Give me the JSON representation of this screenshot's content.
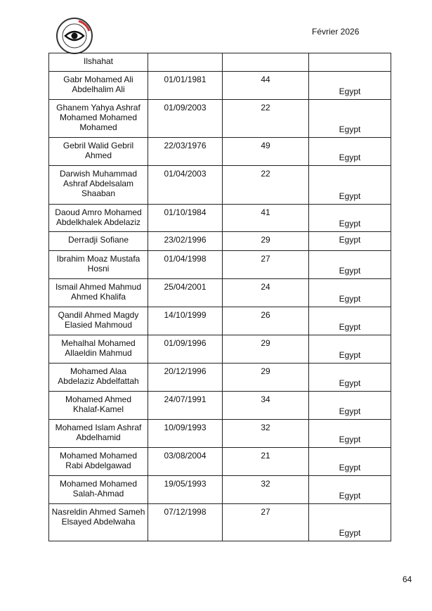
{
  "header": {
    "date": "Février 2026",
    "logo_text": "INVESTIGATIONS WITH IMPACT · NATIONAL INVESTIGATIVE SERVICE"
  },
  "footer": {
    "page_number": "64"
  },
  "table": {
    "rows": [
      {
        "name": "Ilshahat",
        "dob": "",
        "age": "",
        "country": ""
      },
      {
        "name": "Gabr Mohamed Ali Abdelhalim Ali",
        "dob": "01/01/1981",
        "age": "44",
        "country": "Egypt"
      },
      {
        "name": "Ghanem Yahya Ashraf Mohamed Mohamed Mohamed",
        "dob": "01/09/2003",
        "age": "22",
        "country": "Egypt"
      },
      {
        "name": "Gebril Walid Gebril Ahmed",
        "dob": "22/03/1976",
        "age": "49",
        "country": "Egypt"
      },
      {
        "name": "Darwish Muhammad Ashraf Abdelsalam Shaaban",
        "dob": "01/04/2003",
        "age": "22",
        "country": "Egypt"
      },
      {
        "name": "Daoud Amro Mohamed Abdelkhalek Abdelaziz",
        "dob": "01/10/1984",
        "age": "41",
        "country": "Egypt"
      },
      {
        "name": "Derradji Sofiane",
        "dob": "23/02/1996",
        "age": "29",
        "country": "Egypt"
      },
      {
        "name": "Ibrahim Moaz Mustafa Hosni",
        "dob": "01/04/1998",
        "age": "27",
        "country": "Egypt"
      },
      {
        "name": "Ismail Ahmed Mahmud Ahmed Khalifa",
        "dob": "25/04/2001",
        "age": "24",
        "country": "Egypt"
      },
      {
        "name": "Qandil Ahmed Magdy Elasied Mahmoud",
        "dob": "14/10/1999",
        "age": "26",
        "country": "Egypt"
      },
      {
        "name": "Mehalhal Mohamed Allaeldin Mahmud",
        "dob": "01/09/1996",
        "age": "29",
        "country": "Egypt"
      },
      {
        "name": "Mohamed Alaa Abdelaziz Abdelfattah",
        "dob": "20/12/1996",
        "age": "29",
        "country": "Egypt"
      },
      {
        "name": "Mohamed Ahmed Khalaf-Kamel",
        "dob": "24/07/1991",
        "age": "34",
        "country": "Egypt"
      },
      {
        "name": "Mohamed Islam Ashraf Abdelhamid",
        "dob": "10/09/1993",
        "age": "32",
        "country": "Egypt"
      },
      {
        "name": "Mohamed Mohamed Rabi Abdelgawad",
        "dob": "03/08/2004",
        "age": "21",
        "country": "Egypt"
      },
      {
        "name": "Mohamed Mohamed Salah-Ahmad",
        "dob": "19/05/1993",
        "age": "32",
        "country": "Egypt"
      },
      {
        "name": "Nasreldin Ahmed Sameh Elsayed Abdelwaha",
        "dob": "07/12/1998",
        "age": "27",
        "country": "Egypt"
      }
    ]
  }
}
